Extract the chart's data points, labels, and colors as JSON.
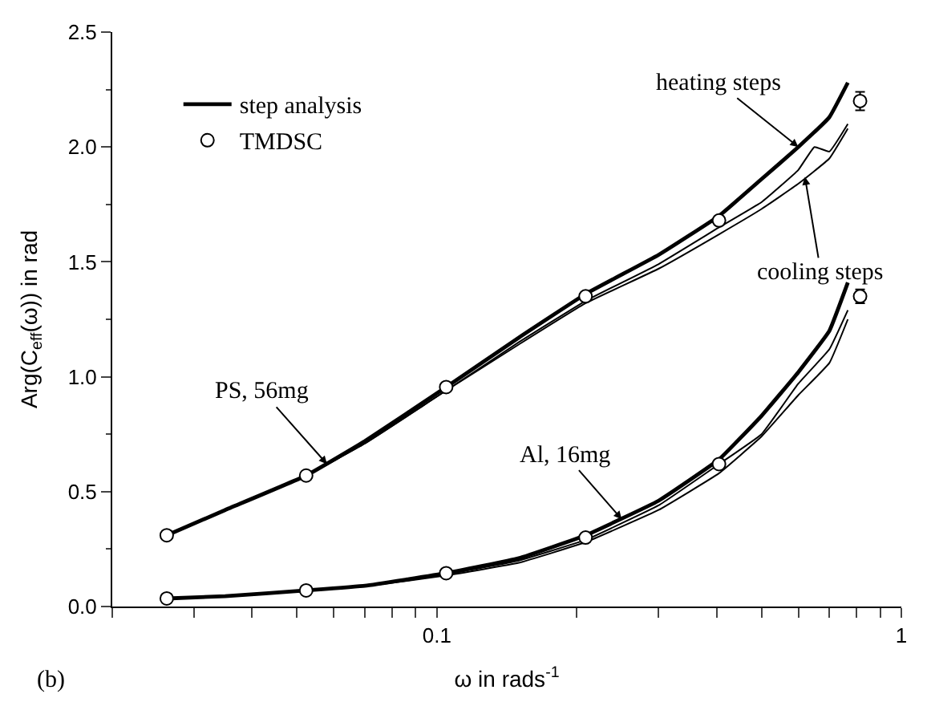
{
  "chart_data": {
    "type": "line",
    "xlabel": "ω in rads$^{-1}$",
    "ylabel": "Arg(C$_{eff}$(ω)) in rad",
    "log": "x",
    "legend": "top left",
    "marker": "none",
    "line_style": "solid",
    "xlim": [
      0.02,
      1
    ],
    "ylim": [
      0,
      2.5
    ],
    "xticks": [
      {
        "value": 0.02,
        "label": null
      },
      {
        "value": 0.03,
        "label": null
      },
      {
        "value": 0.04,
        "label": null
      },
      {
        "value": 0.05,
        "label": null
      },
      {
        "value": 0.06,
        "label": null
      },
      {
        "value": 0.07,
        "label": null
      },
      {
        "value": 0.08,
        "label": null
      },
      {
        "value": 0.09,
        "label": null
      },
      0.1,
      {
        "value": 0.2,
        "label": null
      },
      {
        "value": 0.3,
        "label": null
      },
      {
        "value": 0.4,
        "label": null
      },
      {
        "value": 0.5,
        "label": null
      },
      {
        "value": 0.6,
        "label": null
      },
      {
        "value": 0.7,
        "label": null
      },
      {
        "value": 0.8,
        "label": null
      },
      {
        "value": 0.9,
        "label": null
      },
      1
    ],
    "yticks": [
      {
        "value": 0,
        "label": "0.0"
      },
      0.5,
      {
        "value": 1,
        "label": "1.0"
      },
      1.5,
      {
        "value": 2,
        "label": "2.0"
      },
      2.5
    ],
    "series": [
      {
        "name": "step analysis",
        "color": "#000000",
        "x": [
          0.0262,
          0.035,
          0.0523,
          0.07,
          0.1047,
          0.15,
          0.209,
          0.3,
          0.405,
          0.5,
          0.6,
          0.7,
          0.767
        ],
        "values": [
          0.31,
          0.42,
          0.57,
          0.72,
          0.955,
          1.17,
          1.36,
          1.53,
          1.7,
          1.86,
          2.0,
          2.13,
          2.28
        ]
      },
      {
        "color": "#000000",
        "x": [
          0.0262,
          0.035,
          0.0523,
          0.07,
          0.1047,
          0.15,
          0.209,
          0.3,
          0.405,
          0.5,
          0.6,
          0.65,
          0.7,
          0.767
        ],
        "values": [
          0.31,
          0.42,
          0.57,
          0.71,
          0.94,
          1.15,
          1.33,
          1.49,
          1.65,
          1.76,
          1.9,
          2.0,
          1.98,
          2.1
        ]
      },
      {
        "color": "#000000",
        "x": [
          0.0262,
          0.035,
          0.0523,
          0.07,
          0.1047,
          0.15,
          0.209,
          0.3,
          0.405,
          0.5,
          0.6,
          0.7,
          0.767
        ],
        "values": [
          0.31,
          0.42,
          0.57,
          0.71,
          0.94,
          1.14,
          1.32,
          1.47,
          1.62,
          1.73,
          1.84,
          1.95,
          2.08
        ]
      },
      {
        "color": "#000000",
        "x": [
          0.0262,
          0.035,
          0.0523,
          0.07,
          0.1047,
          0.15,
          0.209,
          0.3,
          0.405,
          0.5,
          0.6,
          0.7,
          0.767
        ],
        "values": [
          0.035,
          0.045,
          0.07,
          0.09,
          0.145,
          0.21,
          0.31,
          0.46,
          0.64,
          0.83,
          1.02,
          1.2,
          1.41
        ]
      },
      {
        "color": "#000000",
        "x": [
          0.0262,
          0.035,
          0.0523,
          0.07,
          0.1047,
          0.15,
          0.209,
          0.3,
          0.405,
          0.5,
          0.6,
          0.7,
          0.767
        ],
        "values": [
          0.035,
          0.045,
          0.069,
          0.089,
          0.14,
          0.2,
          0.29,
          0.44,
          0.62,
          0.75,
          0.97,
          1.12,
          1.29
        ]
      },
      {
        "color": "#000000",
        "x": [
          0.0262,
          0.035,
          0.0523,
          0.07,
          0.1047,
          0.15,
          0.209,
          0.3,
          0.405,
          0.5,
          0.6,
          0.7,
          0.767
        ],
        "values": [
          0.035,
          0.045,
          0.068,
          0.088,
          0.135,
          0.19,
          0.28,
          0.42,
          0.58,
          0.74,
          0.92,
          1.06,
          1.25
        ]
      },
      {
        "name": "TMDSC",
        "type": "scatter",
        "marker": "circle",
        "color": "#000000",
        "x": [
          0.0262,
          0.0523,
          0.1047,
          0.209,
          0.405,
          0.815
        ],
        "values": [
          0.31,
          0.57,
          0.955,
          1.35,
          1.68,
          2.2
        ],
        "errors": [
          null,
          null,
          null,
          null,
          null,
          0.04
        ]
      },
      {
        "type": "scatter",
        "marker": "circle",
        "color": "#000000",
        "x": [
          0.0262,
          0.0523,
          0.1047,
          0.209,
          0.405,
          0.815
        ],
        "values": [
          0.035,
          0.07,
          0.145,
          0.3,
          0.62,
          1.35
        ],
        "errors": [
          null,
          null,
          null,
          null,
          null,
          0.03
        ]
      }
    ],
    "annotations": [
      {
        "text": "heating steps",
        "x": 0.6,
        "y": 2.0
      },
      {
        "text": "cooling steps",
        "x": 0.62,
        "y": 1.87
      },
      {
        "text": "PS, 56mg",
        "x": 0.058,
        "y": 0.62
      },
      {
        "text": "Al, 16mg",
        "x": 0.25,
        "y": 0.38
      },
      "(b)"
    ]
  }
}
